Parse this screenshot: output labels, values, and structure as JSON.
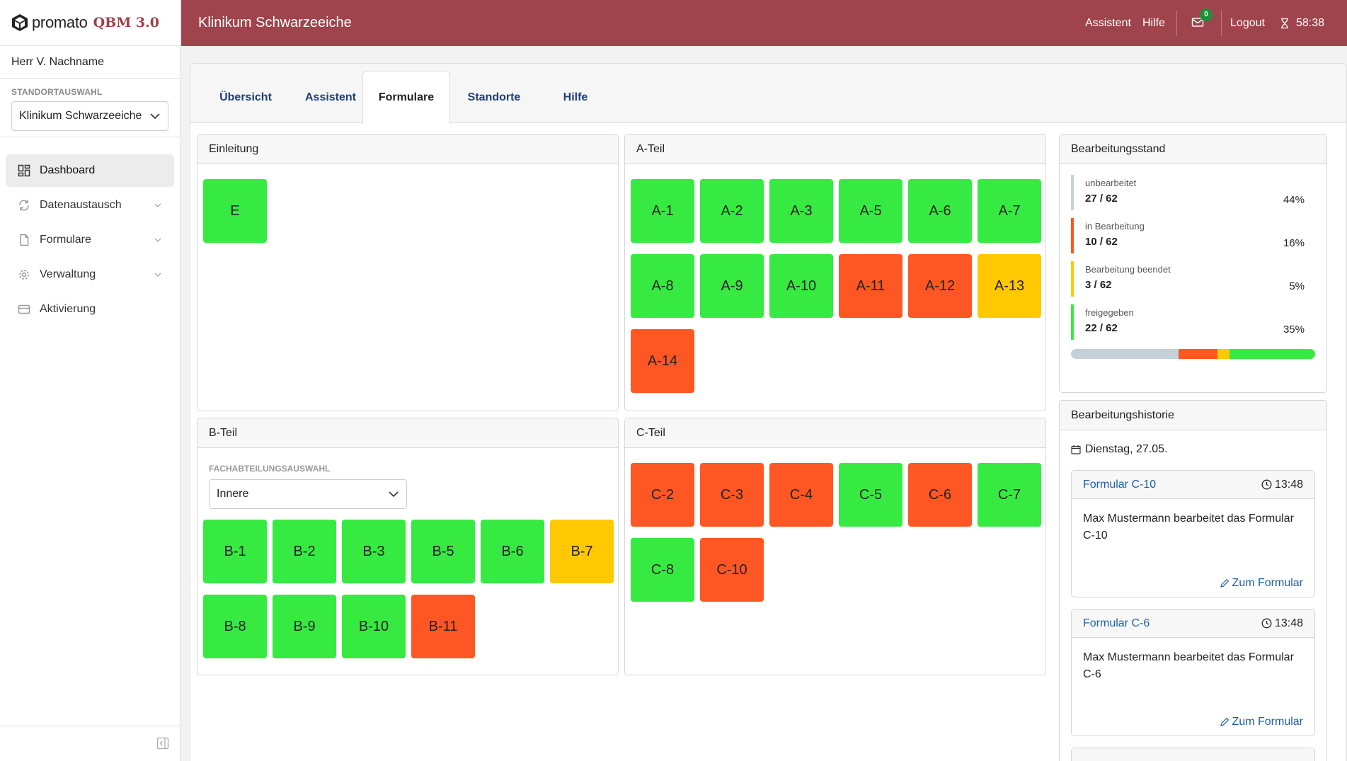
{
  "brand": {
    "name": "promato",
    "product": "QBM 3.0"
  },
  "user": {
    "name": "Herr V. Nachname"
  },
  "site_select": {
    "label": "STANDORTAUSWAHL",
    "value": "Klinikum Schwarzeeiche"
  },
  "nav": [
    {
      "label": "Dashboard",
      "icon": "dashboard-icon",
      "active": true
    },
    {
      "label": "Datenaustausch",
      "icon": "sync-icon"
    },
    {
      "label": "Formulare",
      "icon": "document-icon"
    },
    {
      "label": "Verwaltung",
      "icon": "gear-icon"
    },
    {
      "label": "Aktivierung",
      "icon": "card-icon"
    }
  ],
  "topbar": {
    "title": "Klinikum Schwarzeeiche",
    "assistant": "Assistent",
    "help": "Hilfe",
    "mail_count": "0",
    "logout": "Logout",
    "timer": "58:38"
  },
  "tabs": [
    "Übersicht",
    "Assistent",
    "Formulare",
    "Standorte",
    "Hilfe"
  ],
  "active_tab": "Formulare",
  "sections": {
    "einleitung": {
      "title": "Einleitung",
      "tiles": [
        {
          "label": "E",
          "status": "green"
        }
      ]
    },
    "a_teil": {
      "title": "A-Teil",
      "tiles": [
        {
          "label": "A-1",
          "status": "green"
        },
        {
          "label": "A-2",
          "status": "green"
        },
        {
          "label": "A-3",
          "status": "green"
        },
        {
          "label": "A-5",
          "status": "green"
        },
        {
          "label": "A-6",
          "status": "green"
        },
        {
          "label": "A-7",
          "status": "green"
        },
        {
          "label": "A-8",
          "status": "green"
        },
        {
          "label": "A-9",
          "status": "green"
        },
        {
          "label": "A-10",
          "status": "green"
        },
        {
          "label": "A-11",
          "status": "red"
        },
        {
          "label": "A-12",
          "status": "red"
        },
        {
          "label": "A-13",
          "status": "yellow"
        },
        {
          "label": "A-14",
          "status": "red"
        }
      ]
    },
    "b_teil": {
      "title": "B-Teil",
      "select_label": "FACHABTEILUNGSAUSWAHL",
      "select_value": "Innere",
      "tiles": [
        {
          "label": "B-1",
          "status": "green"
        },
        {
          "label": "B-2",
          "status": "green"
        },
        {
          "label": "B-3",
          "status": "green"
        },
        {
          "label": "B-5",
          "status": "green"
        },
        {
          "label": "B-6",
          "status": "green"
        },
        {
          "label": "B-7",
          "status": "yellow"
        },
        {
          "label": "B-8",
          "status": "green"
        },
        {
          "label": "B-9",
          "status": "green"
        },
        {
          "label": "B-10",
          "status": "green"
        },
        {
          "label": "B-11",
          "status": "red"
        }
      ]
    },
    "c_teil": {
      "title": "C-Teil",
      "tiles": [
        {
          "label": "C-2",
          "status": "red"
        },
        {
          "label": "C-3",
          "status": "red"
        },
        {
          "label": "C-4",
          "status": "red"
        },
        {
          "label": "C-5",
          "status": "green"
        },
        {
          "label": "C-6",
          "status": "red"
        },
        {
          "label": "C-7",
          "status": "green"
        },
        {
          "label": "C-8",
          "status": "green"
        },
        {
          "label": "C-10",
          "status": "red"
        }
      ]
    }
  },
  "status_panel": {
    "title": "Bearbeitungsstand",
    "rows": [
      {
        "name": "unbearbeitet",
        "count": "27 / 62",
        "pct": "44%",
        "color": "#c5d1d8",
        "fraction": 0.44
      },
      {
        "name": "in Bearbeitung",
        "count": "10 / 62",
        "pct": "16%",
        "color": "#fe5723",
        "fraction": 0.16
      },
      {
        "name": "Bearbeitung beendet",
        "count": "3 / 62",
        "pct": "5%",
        "color": "#ffc800",
        "fraction": 0.05
      },
      {
        "name": "freigegeben",
        "count": "22 / 62",
        "pct": "35%",
        "color": "#37ea42",
        "fraction": 0.35
      }
    ]
  },
  "history": {
    "title": "Bearbeitungshistorie",
    "date": "Dienstag, 27.05.",
    "entries": [
      {
        "form": "Formular C-10",
        "time": "13:48",
        "text": "Max Mustermann bearbeitet das Formular C-10",
        "link": "Zum Formular"
      },
      {
        "form": "Formular C-6",
        "time": "13:48",
        "text": "Max Mustermann bearbeitet das Formular C-6",
        "link": "Zum Formular"
      }
    ]
  }
}
